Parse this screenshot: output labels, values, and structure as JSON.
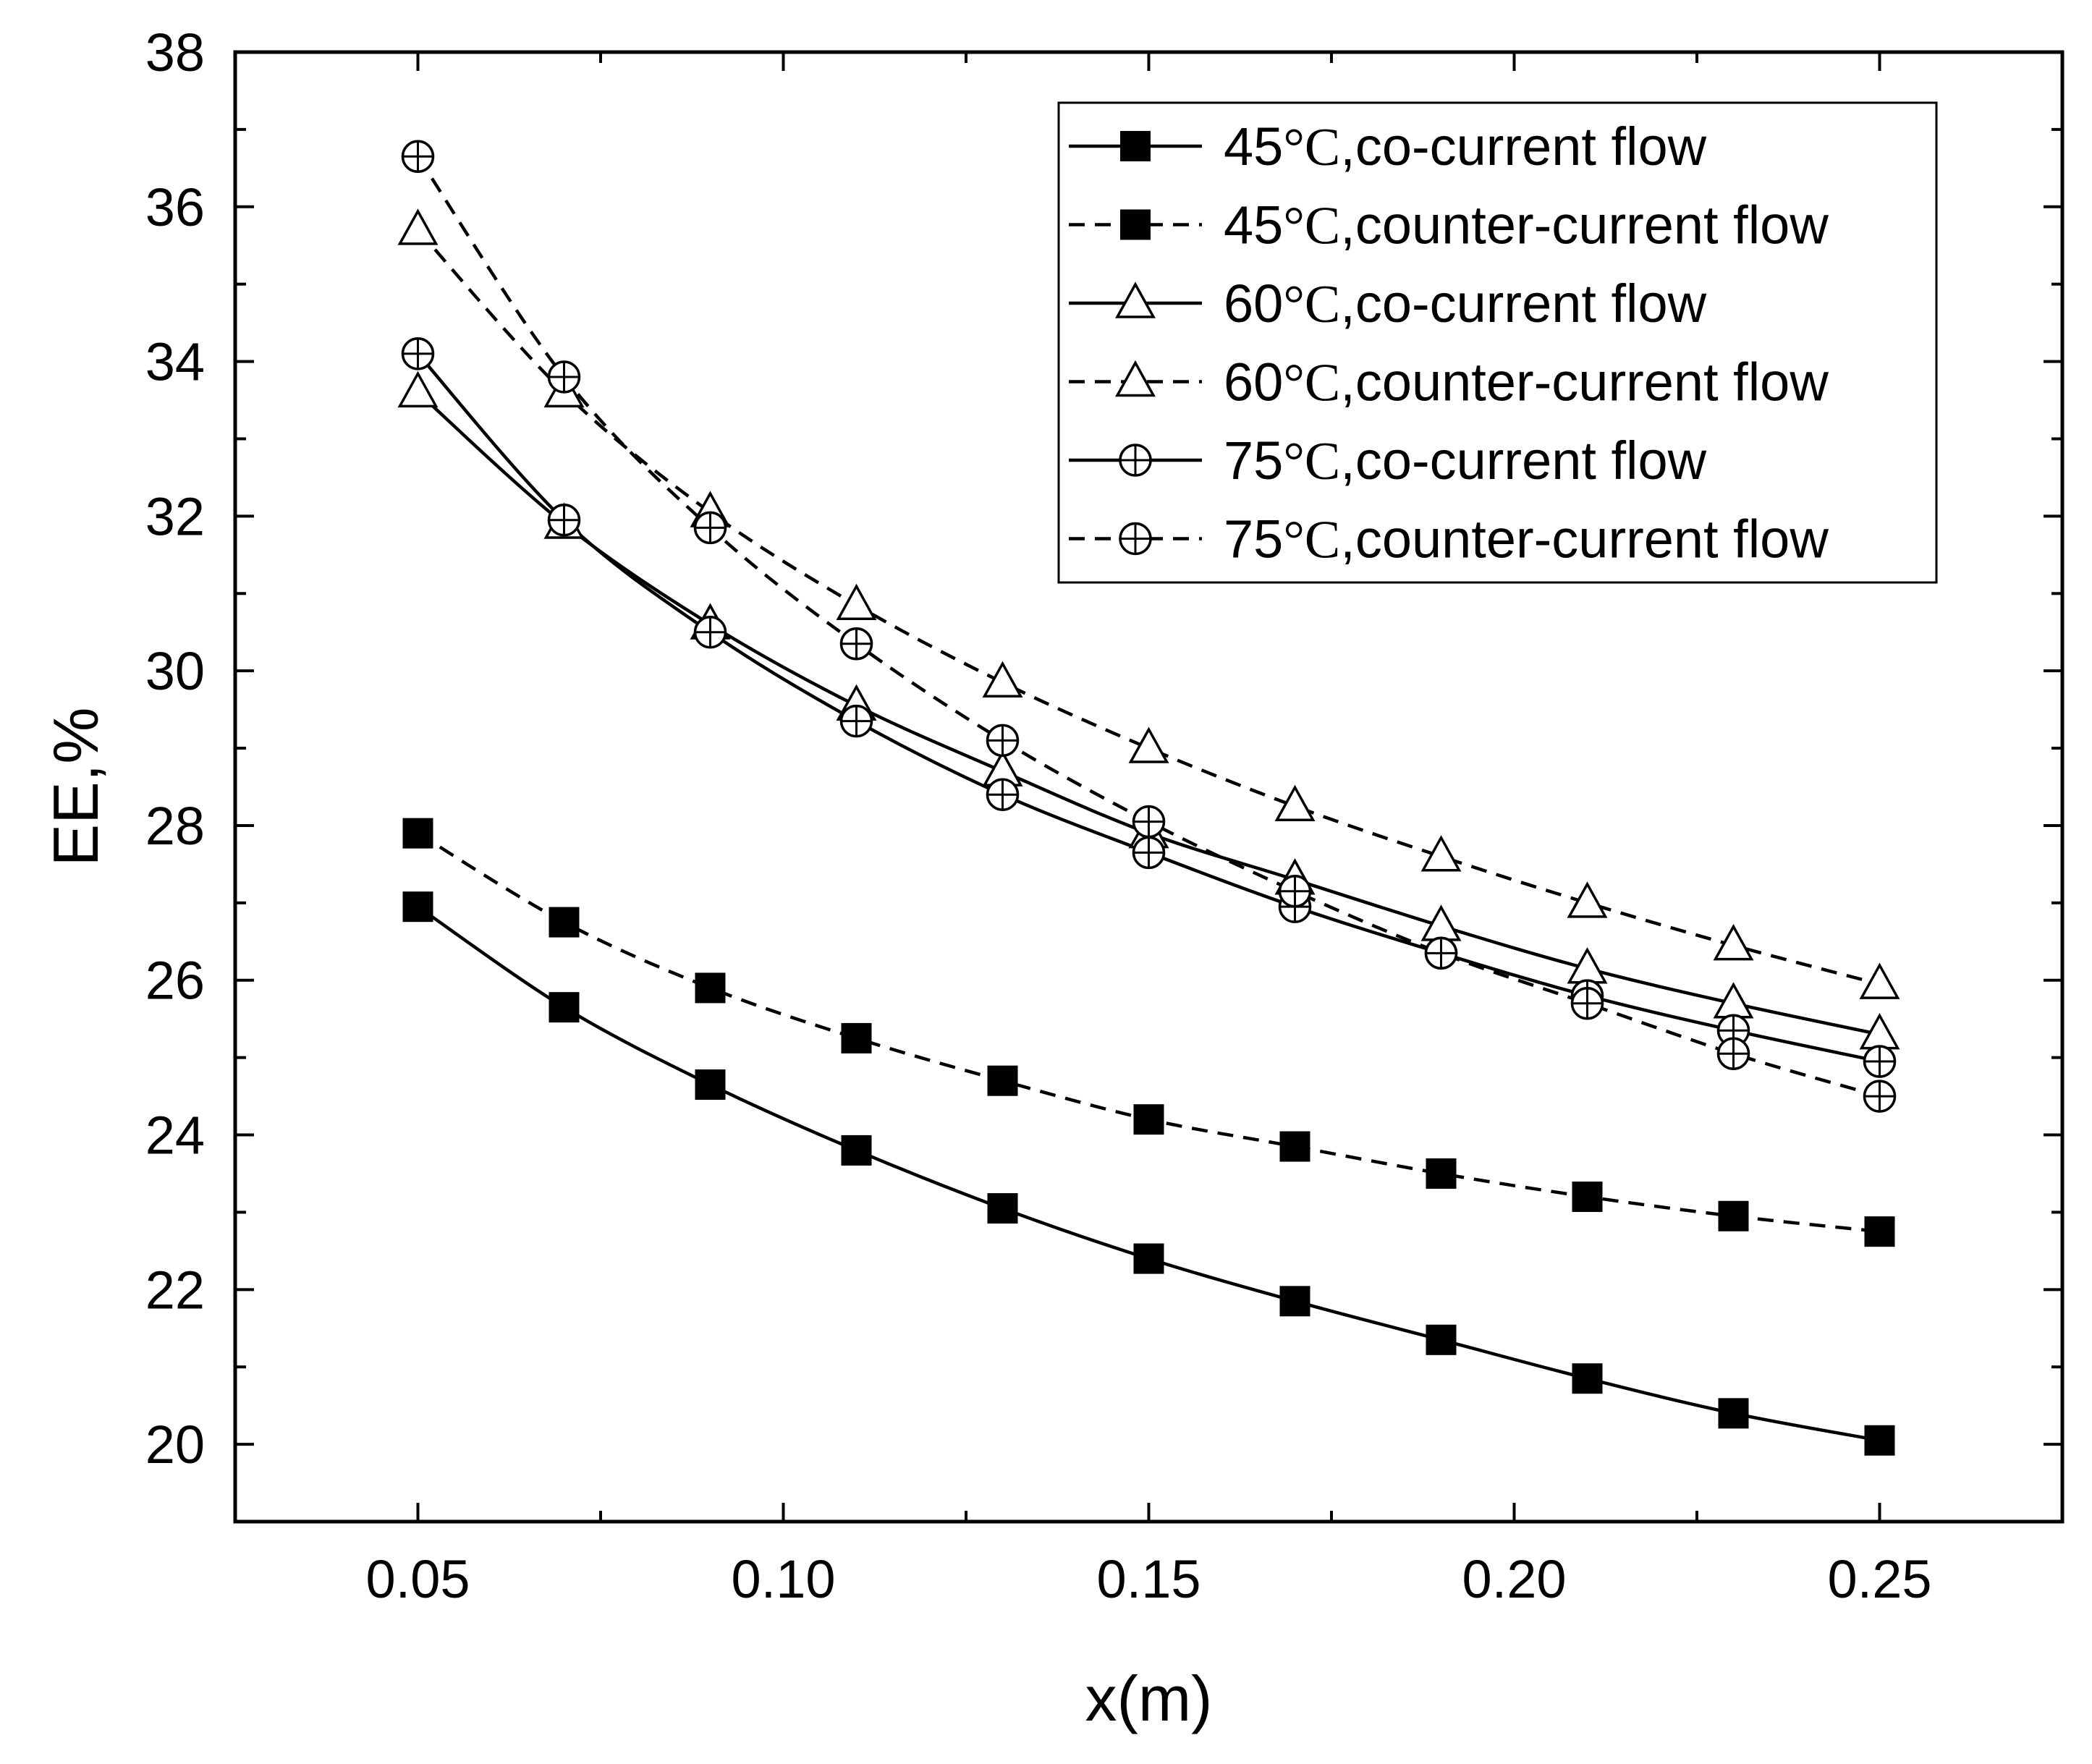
{
  "chart_data": {
    "type": "line",
    "title": "",
    "xlabel": "x(m)",
    "ylabel": "EE,%",
    "xlim": [
      0.025,
      0.275
    ],
    "ylim": [
      19,
      38
    ],
    "x_ticks": [
      0.05,
      0.1,
      0.15,
      0.2,
      0.25
    ],
    "x_tick_labels": [
      "0.05",
      "0.10",
      "0.15",
      "0.20",
      "0.25"
    ],
    "y_ticks": [
      20,
      22,
      24,
      26,
      28,
      30,
      32,
      34,
      36,
      38
    ],
    "y_tick_labels": [
      "20",
      "22",
      "24",
      "26",
      "28",
      "30",
      "32",
      "34",
      "36",
      "38"
    ],
    "grid": false,
    "legend_position": "top-right",
    "x": [
      0.05,
      0.07,
      0.09,
      0.11,
      0.13,
      0.15,
      0.17,
      0.19,
      0.21,
      0.23,
      0.25
    ],
    "series": [
      {
        "name": "45°C,co-current flow",
        "temp": "45",
        "unit": "°C",
        "flow": ",co-current flow",
        "marker": "square",
        "line": "solid",
        "values": [
          26.95,
          25.65,
          24.65,
          23.8,
          23.05,
          22.4,
          21.85,
          21.35,
          20.85,
          20.4,
          20.05
        ]
      },
      {
        "name": "45°C,counter-current flow",
        "temp": "45",
        "unit": "°C",
        "flow": ",counter-current flow",
        "marker": "square",
        "line": "dashed",
        "values": [
          27.9,
          26.75,
          25.9,
          25.25,
          24.7,
          24.2,
          23.85,
          23.5,
          23.2,
          22.95,
          22.75
        ]
      },
      {
        "name": "60°C,co-current flow",
        "temp": "60",
        "unit": "°C",
        "flow": ",co-current flow",
        "marker": "triangle",
        "line": "solid",
        "values": [
          33.6,
          31.9,
          30.6,
          29.55,
          28.7,
          27.9,
          27.3,
          26.7,
          26.15,
          25.7,
          25.3
        ]
      },
      {
        "name": "60°C,counter-current flow",
        "temp": "60",
        "unit": "°C",
        "flow": ",counter-current flow",
        "marker": "triangle",
        "line": "dashed",
        "values": [
          35.7,
          33.6,
          32.05,
          30.85,
          29.85,
          29.0,
          28.25,
          27.6,
          27.0,
          26.45,
          25.95
        ]
      },
      {
        "name": "75°C,co-current flow",
        "temp": "75",
        "unit": "°C",
        "flow": ",co-current flow",
        "marker": "circle-plus",
        "line": "solid",
        "values": [
          34.1,
          31.95,
          30.5,
          29.35,
          28.4,
          27.65,
          26.95,
          26.35,
          25.8,
          25.35,
          24.95
        ]
      },
      {
        "name": "75°C,counter-current flow",
        "temp": "75",
        "unit": "°C",
        "flow": ",counter-current flow",
        "marker": "circle-plus",
        "line": "dashed",
        "values": [
          36.65,
          33.8,
          31.85,
          30.35,
          29.1,
          28.05,
          27.15,
          26.35,
          25.7,
          25.05,
          24.5
        ]
      }
    ]
  }
}
